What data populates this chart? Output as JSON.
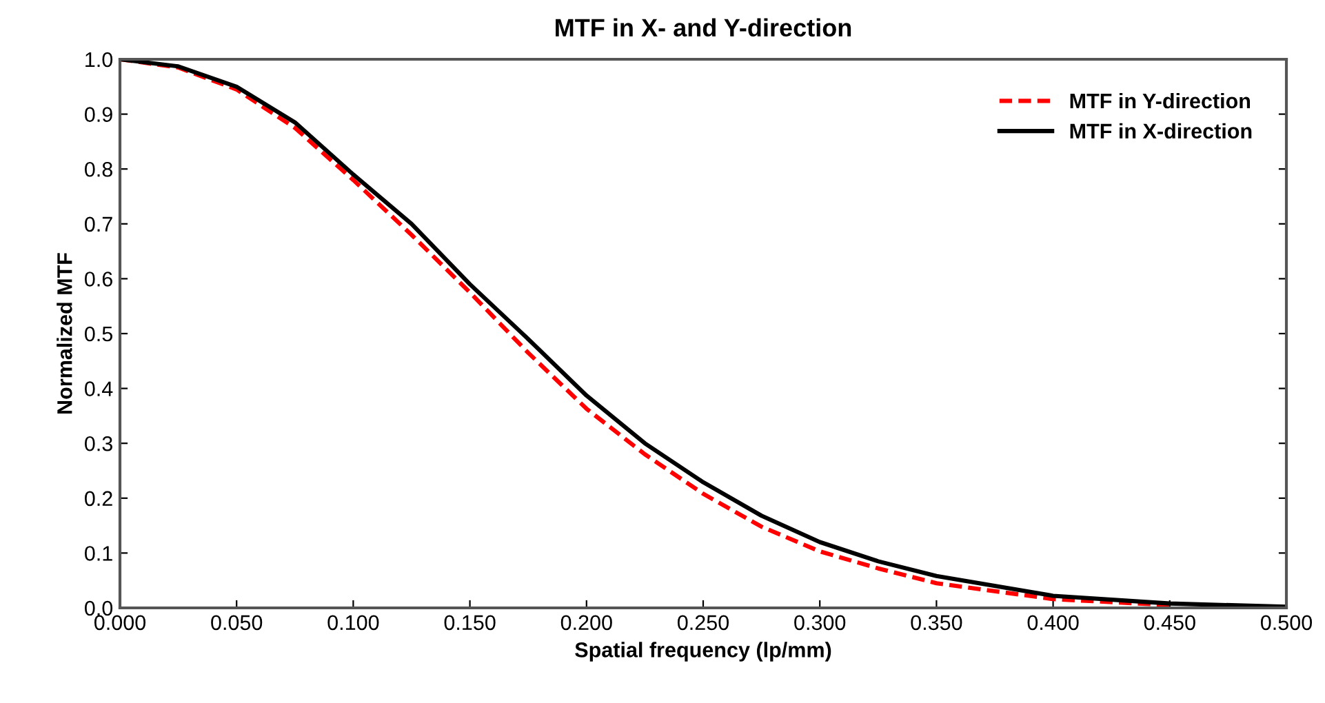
{
  "chart_data": {
    "type": "line",
    "title": "MTF in X- and Y-direction",
    "xlabel": "Spatial frequency (lp/mm)",
    "ylabel": "Normalized MTF",
    "x": [
      0,
      0.025,
      0.05,
      0.075,
      0.1,
      0.125,
      0.15,
      0.175,
      0.2,
      0.225,
      0.25,
      0.275,
      0.3,
      0.325,
      0.35,
      0.4,
      0.45,
      0.5
    ],
    "series": [
      {
        "name": "MTF in Y-direction",
        "color": "#ff0000",
        "line_style": "dashed",
        "values": [
          1.0,
          0.985,
          0.945,
          0.875,
          0.78,
          0.68,
          0.575,
          0.465,
          0.363,
          0.28,
          0.208,
          0.148,
          0.103,
          0.072,
          0.045,
          0.016,
          0.005,
          null
        ]
      },
      {
        "name": "MTF in X-direction",
        "color": "#000000",
        "line_style": "solid",
        "values": [
          1.0,
          0.987,
          0.95,
          0.885,
          0.79,
          0.7,
          0.59,
          0.49,
          0.387,
          0.3,
          0.229,
          0.168,
          0.12,
          0.085,
          0.058,
          0.022,
          0.008,
          0.002
        ]
      }
    ],
    "xlim": [
      0,
      0.5
    ],
    "ylim": [
      0,
      1.0
    ],
    "xticks": [
      {
        "value": 0,
        "label": "0.000"
      },
      {
        "value": 0.05,
        "label": "0.050"
      },
      {
        "value": 0.1,
        "label": "0.100"
      },
      {
        "value": 0.15,
        "label": "0.150"
      },
      {
        "value": 0.2,
        "label": "0.200"
      },
      {
        "value": 0.25,
        "label": "0.250"
      },
      {
        "value": 0.3,
        "label": "0.300"
      },
      {
        "value": 0.35,
        "label": "0.350"
      },
      {
        "value": 0.4,
        "label": "0.400"
      },
      {
        "value": 0.45,
        "label": "0.450"
      },
      {
        "value": 0.5,
        "label": "0.500"
      }
    ],
    "yticks": [
      {
        "value": 0,
        "label": "0.0"
      },
      0.1,
      0.2,
      0.3,
      0.4,
      0.5,
      0.6,
      0.7,
      0.8,
      0.9,
      {
        "value": 1.0,
        "label": "1.0"
      }
    ],
    "legend": "top right",
    "grid": false,
    "marker": "none"
  }
}
